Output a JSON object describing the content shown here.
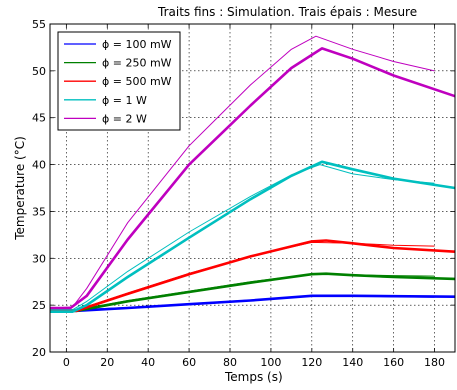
{
  "chart_data": {
    "type": "line",
    "title": "Traits fins : Simulation. Trais épais : Mesure",
    "xlabel": "Temps (s)",
    "ylabel": "Temperature (°C)",
    "xlim": [
      -8,
      190
    ],
    "ylim": [
      20,
      55
    ],
    "xticks": [
      0,
      20,
      40,
      60,
      80,
      100,
      120,
      140,
      160,
      180
    ],
    "yticks": [
      20,
      25,
      30,
      35,
      40,
      45,
      50,
      55
    ],
    "grid": true,
    "legend_position": "top-left",
    "series": [
      {
        "name": "ϕ = 100 mW",
        "color": "#0000ff",
        "measured": [
          [
            -8,
            24.4
          ],
          [
            5,
            24.4
          ],
          [
            30,
            24.7
          ],
          [
            60,
            25.1
          ],
          [
            90,
            25.5
          ],
          [
            120,
            26.0
          ],
          [
            140,
            26.0
          ],
          [
            160,
            25.95
          ],
          [
            190,
            25.9
          ]
        ],
        "simulated": [
          [
            -8,
            24.5
          ],
          [
            5,
            24.5
          ],
          [
            30,
            24.75
          ],
          [
            60,
            25.15
          ],
          [
            90,
            25.55
          ],
          [
            120,
            25.95
          ],
          [
            140,
            25.95
          ],
          [
            160,
            25.9
          ],
          [
            180,
            25.85
          ]
        ]
      },
      {
        "name": "ϕ = 250 mW",
        "color": "#008000",
        "measured": [
          [
            -8,
            24.4
          ],
          [
            5,
            24.4
          ],
          [
            30,
            25.4
          ],
          [
            60,
            26.4
          ],
          [
            90,
            27.4
          ],
          [
            120,
            28.3
          ],
          [
            127,
            28.35
          ],
          [
            140,
            28.2
          ],
          [
            160,
            28.0
          ],
          [
            190,
            27.8
          ]
        ],
        "simulated": [
          [
            -8,
            24.5
          ],
          [
            5,
            24.5
          ],
          [
            30,
            25.5
          ],
          [
            60,
            26.5
          ],
          [
            90,
            27.5
          ],
          [
            120,
            28.3
          ],
          [
            140,
            28.25
          ],
          [
            160,
            28.15
          ],
          [
            180,
            28.1
          ]
        ]
      },
      {
        "name": "ϕ = 500 mW",
        "color": "#ff0000",
        "measured": [
          [
            -8,
            24.4
          ],
          [
            5,
            24.4
          ],
          [
            30,
            26.2
          ],
          [
            60,
            28.3
          ],
          [
            90,
            30.2
          ],
          [
            120,
            31.8
          ],
          [
            127,
            31.9
          ],
          [
            140,
            31.6
          ],
          [
            160,
            31.1
          ],
          [
            190,
            30.7
          ]
        ],
        "simulated": [
          [
            -8,
            24.5
          ],
          [
            5,
            24.5
          ],
          [
            30,
            26.3
          ],
          [
            60,
            28.4
          ],
          [
            90,
            30.2
          ],
          [
            120,
            31.7
          ],
          [
            140,
            31.6
          ],
          [
            160,
            31.4
          ],
          [
            180,
            31.3
          ]
        ]
      },
      {
        "name": "ϕ = 1 W",
        "color": "#00bfbf",
        "measured": [
          [
            -8,
            24.3
          ],
          [
            3,
            24.3
          ],
          [
            10,
            25.0
          ],
          [
            30,
            28.0
          ],
          [
            60,
            32.2
          ],
          [
            90,
            36.3
          ],
          [
            110,
            38.8
          ],
          [
            125,
            40.3
          ],
          [
            140,
            39.5
          ],
          [
            160,
            38.5
          ],
          [
            190,
            37.5
          ]
        ],
        "simulated": [
          [
            -8,
            24.5
          ],
          [
            3,
            24.5
          ],
          [
            10,
            25.4
          ],
          [
            30,
            28.6
          ],
          [
            60,
            32.8
          ],
          [
            90,
            36.6
          ],
          [
            110,
            38.9
          ],
          [
            124,
            40.0
          ],
          [
            140,
            39.0
          ],
          [
            160,
            38.4
          ],
          [
            180,
            38.0
          ]
        ]
      },
      {
        "name": "ϕ = 2 W",
        "color": "#bf00bf",
        "measured": [
          [
            -8,
            24.7
          ],
          [
            2,
            24.7
          ],
          [
            10,
            26.0
          ],
          [
            30,
            32.0
          ],
          [
            60,
            40.0
          ],
          [
            90,
            46.3
          ],
          [
            110,
            50.3
          ],
          [
            125,
            52.4
          ],
          [
            140,
            51.3
          ],
          [
            160,
            49.5
          ],
          [
            190,
            47.3
          ]
        ],
        "simulated": [
          [
            -8,
            24.7
          ],
          [
            3,
            24.8
          ],
          [
            10,
            26.8
          ],
          [
            30,
            33.8
          ],
          [
            60,
            42.0
          ],
          [
            90,
            48.5
          ],
          [
            110,
            52.3
          ],
          [
            122,
            53.7
          ],
          [
            140,
            52.3
          ],
          [
            160,
            51.0
          ],
          [
            180,
            50.0
          ]
        ]
      }
    ]
  }
}
